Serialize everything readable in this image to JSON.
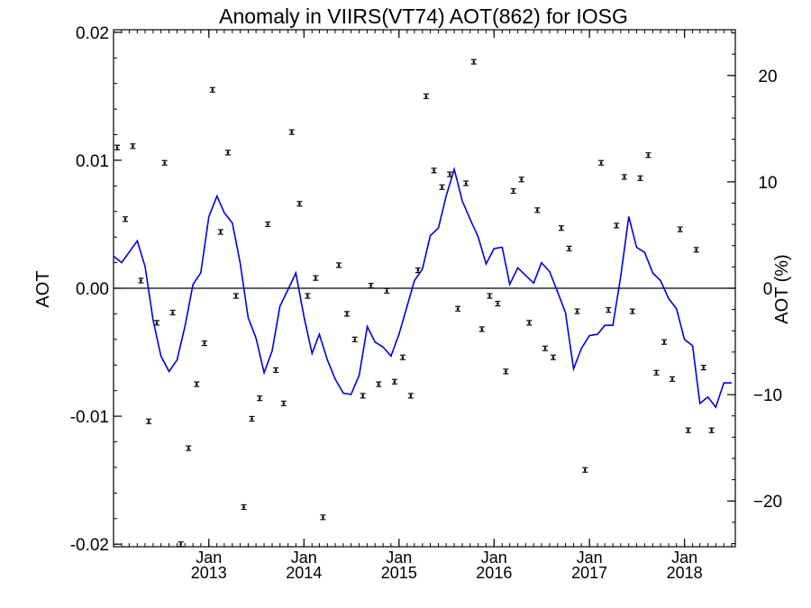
{
  "chart_data": {
    "type": "scatter",
    "title": "Anomaly in VIIRS(VT74) AOT(862) for IOSG",
    "ylabel": "AOT",
    "ylabel_right": "AOT (%)",
    "xlim": [
      "2012-01-01",
      "2018-07-15"
    ],
    "ylim": [
      -0.0202,
      0.0202
    ],
    "ylim_right": [
      -24.3,
      24.3
    ],
    "yticks": [
      {
        "value": -0.02,
        "label": "-0.02"
      },
      {
        "value": -0.01,
        "label": "-0.01"
      },
      {
        "value": 0.0,
        "label": "0.00"
      },
      {
        "value": 0.01,
        "label": "0.01"
      },
      {
        "value": 0.02,
        "label": "0.02"
      }
    ],
    "yticks_right": [
      {
        "value": -20,
        "label": "−20"
      },
      {
        "value": -10,
        "label": "−10"
      },
      {
        "value": 0,
        "label": "0"
      },
      {
        "value": 10,
        "label": "10"
      },
      {
        "value": 20,
        "label": "20"
      }
    ],
    "xticks": [
      {
        "date": "2013-01-01",
        "month": "Jan",
        "year": "2013"
      },
      {
        "date": "2014-01-01",
        "month": "Jan",
        "year": "2014"
      },
      {
        "date": "2015-01-01",
        "month": "Jan",
        "year": "2015"
      },
      {
        "date": "2016-01-01",
        "month": "Jan",
        "year": "2016"
      },
      {
        "date": "2017-01-01",
        "month": "Jan",
        "year": "2017"
      },
      {
        "date": "2018-01-01",
        "month": "Jan",
        "year": "2018"
      }
    ],
    "grid": false,
    "zero_line": true,
    "colors": {
      "points": "#000000",
      "line": "#0000dd",
      "axes": "#000000"
    },
    "series": [
      {
        "type": "scatter_errorbar",
        "points": [
          {
            "x": "2012-01-15",
            "y": 0.011
          },
          {
            "x": "2012-02-15",
            "y": 0.0054
          },
          {
            "x": "2012-03-15",
            "y": 0.0111
          },
          {
            "x": "2012-04-15",
            "y": 0.0006
          },
          {
            "x": "2012-05-15",
            "y": -0.0104
          },
          {
            "x": "2012-06-15",
            "y": -0.0027
          },
          {
            "x": "2012-07-15",
            "y": 0.0098
          },
          {
            "x": "2012-08-15",
            "y": -0.0019
          },
          {
            "x": "2012-09-15",
            "y": -0.02
          },
          {
            "x": "2012-10-15",
            "y": -0.0125
          },
          {
            "x": "2012-11-15",
            "y": -0.0075
          },
          {
            "x": "2012-12-15",
            "y": -0.0043
          },
          {
            "x": "2013-01-15",
            "y": 0.0155
          },
          {
            "x": "2013-02-15",
            "y": 0.0044
          },
          {
            "x": "2013-03-15",
            "y": 0.0106
          },
          {
            "x": "2013-04-15",
            "y": -0.0006
          },
          {
            "x": "2013-05-15",
            "y": -0.0171
          },
          {
            "x": "2013-06-15",
            "y": -0.0102
          },
          {
            "x": "2013-07-15",
            "y": -0.0086
          },
          {
            "x": "2013-08-15",
            "y": 0.005
          },
          {
            "x": "2013-09-15",
            "y": -0.0064
          },
          {
            "x": "2013-10-15",
            "y": -0.009
          },
          {
            "x": "2013-11-15",
            "y": 0.0122
          },
          {
            "x": "2013-12-15",
            "y": 0.0066
          },
          {
            "x": "2014-01-15",
            "y": -0.0006
          },
          {
            "x": "2014-02-15",
            "y": 0.0008
          },
          {
            "x": "2014-03-15",
            "y": -0.0179
          },
          {
            "x": "2014-05-15",
            "y": 0.0018
          },
          {
            "x": "2014-06-15",
            "y": -0.002
          },
          {
            "x": "2014-07-15",
            "y": -0.004
          },
          {
            "x": "2014-08-15",
            "y": -0.0084
          },
          {
            "x": "2014-09-15",
            "y": 0.0002
          },
          {
            "x": "2014-10-15",
            "y": -0.0075
          },
          {
            "x": "2014-11-15",
            "y": -0.0002
          },
          {
            "x": "2014-12-15",
            "y": -0.0073
          },
          {
            "x": "2015-01-15",
            "y": -0.0054
          },
          {
            "x": "2015-02-15",
            "y": -0.0084
          },
          {
            "x": "2015-03-15",
            "y": 0.0014
          },
          {
            "x": "2015-04-15",
            "y": 0.015
          },
          {
            "x": "2015-05-15",
            "y": 0.0092
          },
          {
            "x": "2015-06-15",
            "y": 0.0079
          },
          {
            "x": "2015-07-15",
            "y": 0.0089
          },
          {
            "x": "2015-08-15",
            "y": -0.0016
          },
          {
            "x": "2015-09-15",
            "y": 0.0082
          },
          {
            "x": "2015-10-15",
            "y": 0.0177
          },
          {
            "x": "2015-11-15",
            "y": -0.0032
          },
          {
            "x": "2015-12-15",
            "y": -0.0006
          },
          {
            "x": "2016-01-15",
            "y": -0.0012
          },
          {
            "x": "2016-02-15",
            "y": -0.0065
          },
          {
            "x": "2016-03-15",
            "y": 0.0076
          },
          {
            "x": "2016-04-15",
            "y": 0.0085
          },
          {
            "x": "2016-05-15",
            "y": -0.0027
          },
          {
            "x": "2016-06-15",
            "y": 0.0061
          },
          {
            "x": "2016-07-15",
            "y": -0.0047
          },
          {
            "x": "2016-08-15",
            "y": -0.0054
          },
          {
            "x": "2016-09-15",
            "y": 0.0047
          },
          {
            "x": "2016-10-15",
            "y": 0.0031
          },
          {
            "x": "2016-11-15",
            "y": -0.0018
          },
          {
            "x": "2016-12-15",
            "y": -0.0142
          },
          {
            "x": "2017-02-15",
            "y": 0.0098
          },
          {
            "x": "2017-03-15",
            "y": -0.0017
          },
          {
            "x": "2017-04-15",
            "y": 0.0049
          },
          {
            "x": "2017-05-15",
            "y": 0.0087
          },
          {
            "x": "2017-06-15",
            "y": -0.0018
          },
          {
            "x": "2017-07-15",
            "y": 0.0086
          },
          {
            "x": "2017-08-15",
            "y": 0.0104
          },
          {
            "x": "2017-09-15",
            "y": -0.0066
          },
          {
            "x": "2017-10-15",
            "y": -0.0042
          },
          {
            "x": "2017-11-15",
            "y": -0.0071
          },
          {
            "x": "2017-12-15",
            "y": 0.0046
          },
          {
            "x": "2018-01-15",
            "y": -0.0111
          },
          {
            "x": "2018-02-15",
            "y": 0.003
          },
          {
            "x": "2018-03-15",
            "y": -0.0062
          },
          {
            "x": "2018-04-15",
            "y": -0.0111
          }
        ]
      },
      {
        "type": "line",
        "points": [
          {
            "x": "2012-01-01",
            "y": 0.0025
          },
          {
            "x": "2012-02-01",
            "y": 0.002
          },
          {
            "x": "2012-04-01",
            "y": 0.0037
          },
          {
            "x": "2012-05-01",
            "y": 0.0017
          },
          {
            "x": "2012-06-01",
            "y": -0.0025
          },
          {
            "x": "2012-07-01",
            "y": -0.0053
          },
          {
            "x": "2012-08-01",
            "y": -0.0065
          },
          {
            "x": "2012-09-01",
            "y": -0.0056
          },
          {
            "x": "2012-10-01",
            "y": -0.003
          },
          {
            "x": "2012-11-01",
            "y": 0.0003
          },
          {
            "x": "2012-12-01",
            "y": 0.0012
          },
          {
            "x": "2013-01-01",
            "y": 0.0056
          },
          {
            "x": "2013-02-01",
            "y": 0.0072
          },
          {
            "x": "2013-03-01",
            "y": 0.0059
          },
          {
            "x": "2013-04-01",
            "y": 0.0051
          },
          {
            "x": "2013-05-01",
            "y": 0.002
          },
          {
            "x": "2013-06-01",
            "y": -0.0023
          },
          {
            "x": "2013-07-01",
            "y": -0.0039
          },
          {
            "x": "2013-08-01",
            "y": -0.0066
          },
          {
            "x": "2013-09-01",
            "y": -0.0049
          },
          {
            "x": "2013-10-01",
            "y": -0.0014
          },
          {
            "x": "2013-11-01",
            "y": -0.0001
          },
          {
            "x": "2013-12-01",
            "y": 0.0012
          },
          {
            "x": "2014-01-01",
            "y": -0.0022
          },
          {
            "x": "2014-02-01",
            "y": -0.0051
          },
          {
            "x": "2014-03-01",
            "y": -0.0036
          },
          {
            "x": "2014-04-01",
            "y": -0.0056
          },
          {
            "x": "2014-05-01",
            "y": -0.0071
          },
          {
            "x": "2014-06-01",
            "y": -0.0082
          },
          {
            "x": "2014-07-01",
            "y": -0.0083
          },
          {
            "x": "2014-08-01",
            "y": -0.0068
          },
          {
            "x": "2014-09-01",
            "y": -0.003
          },
          {
            "x": "2014-10-01",
            "y": -0.0042
          },
          {
            "x": "2014-11-01",
            "y": -0.0046
          },
          {
            "x": "2014-12-01",
            "y": -0.0053
          },
          {
            "x": "2015-01-01",
            "y": -0.0036
          },
          {
            "x": "2015-02-01",
            "y": -0.0014
          },
          {
            "x": "2015-03-01",
            "y": 0.0006
          },
          {
            "x": "2015-04-01",
            "y": 0.0015
          },
          {
            "x": "2015-05-01",
            "y": 0.0041
          },
          {
            "x": "2015-06-01",
            "y": 0.0047
          },
          {
            "x": "2015-07-01",
            "y": 0.0072
          },
          {
            "x": "2015-08-01",
            "y": 0.0093
          },
          {
            "x": "2015-09-01",
            "y": 0.0068
          },
          {
            "x": "2015-10-01",
            "y": 0.0054
          },
          {
            "x": "2015-11-01",
            "y": 0.004
          },
          {
            "x": "2015-12-01",
            "y": 0.0019
          },
          {
            "x": "2016-01-01",
            "y": 0.0031
          },
          {
            "x": "2016-02-01",
            "y": 0.0032
          },
          {
            "x": "2016-03-01",
            "y": 0.0003
          },
          {
            "x": "2016-04-01",
            "y": 0.0016
          },
          {
            "x": "2016-05-01",
            "y": 0.001
          },
          {
            "x": "2016-06-01",
            "y": 0.0004
          },
          {
            "x": "2016-07-01",
            "y": 0.002
          },
          {
            "x": "2016-08-01",
            "y": 0.0013
          },
          {
            "x": "2016-09-01",
            "y": -0.0003
          },
          {
            "x": "2016-10-01",
            "y": -0.0019
          },
          {
            "x": "2016-11-01",
            "y": -0.0063
          },
          {
            "x": "2016-12-01",
            "y": -0.0047
          },
          {
            "x": "2017-01-01",
            "y": -0.0037
          },
          {
            "x": "2017-02-01",
            "y": -0.0036
          },
          {
            "x": "2017-03-01",
            "y": -0.0029
          },
          {
            "x": "2017-04-01",
            "y": -0.0029
          },
          {
            "x": "2017-05-01",
            "y": 0.0009
          },
          {
            "x": "2017-06-01",
            "y": 0.0056
          },
          {
            "x": "2017-07-01",
            "y": 0.0032
          },
          {
            "x": "2017-08-01",
            "y": 0.0028
          },
          {
            "x": "2017-09-01",
            "y": 0.0012
          },
          {
            "x": "2017-10-01",
            "y": 0.0006
          },
          {
            "x": "2017-11-01",
            "y": -0.0008
          },
          {
            "x": "2017-12-01",
            "y": -0.0016
          },
          {
            "x": "2018-01-01",
            "y": -0.004
          },
          {
            "x": "2018-02-01",
            "y": -0.0045
          },
          {
            "x": "2018-03-01",
            "y": -0.009
          },
          {
            "x": "2018-04-01",
            "y": -0.0085
          },
          {
            "x": "2018-05-01",
            "y": -0.0093
          },
          {
            "x": "2018-06-01",
            "y": -0.0074
          },
          {
            "x": "2018-07-01",
            "y": -0.0074
          }
        ]
      }
    ]
  }
}
